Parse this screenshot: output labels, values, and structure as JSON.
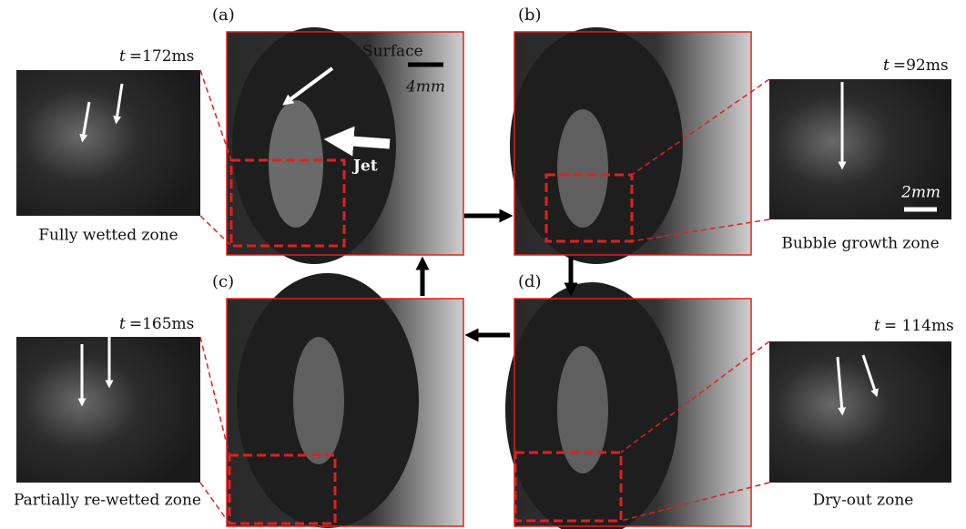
{
  "panels": [
    {
      "label": "(a)"
    },
    {
      "label": "(b)"
    },
    {
      "label": "(c)"
    },
    {
      "label": "(d)"
    }
  ],
  "annotations": {
    "surface": "Surface",
    "scale_a": "4mm",
    "jet": "Jet",
    "scale_inset": "2mm"
  },
  "insets": [
    {
      "time_symbol": "t",
      "time": "=172ms",
      "label": "Fully wetted zone"
    },
    {
      "time_symbol": "t",
      "time": "=92ms",
      "label": "Bubble growth zone"
    },
    {
      "time_symbol": "t",
      "time": "=165ms",
      "label": "Partially re-wetted zone"
    },
    {
      "time_symbol": "t",
      "time": "= 114ms",
      "label": "Dry-out zone"
    }
  ]
}
